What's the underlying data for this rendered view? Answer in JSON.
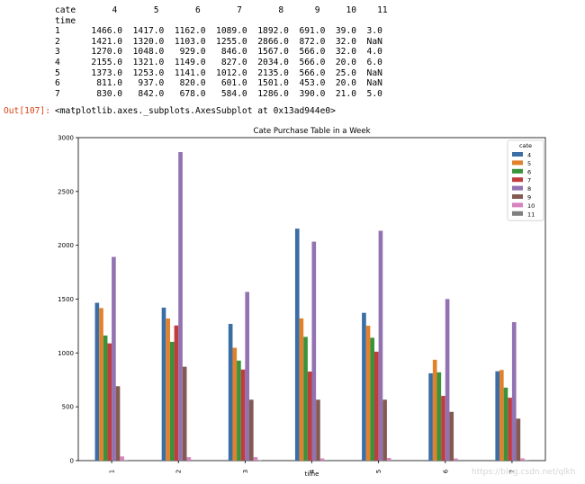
{
  "stdout": {
    "table_text": "cate       4       5       6       7       8      9     10    11\ntime\n1      1466.0  1417.0  1162.0  1089.0  1892.0  691.0  39.0  3.0\n2      1421.0  1320.0  1103.0  1255.0  2866.0  872.0  32.0  NaN\n3      1270.0  1048.0   929.0   846.0  1567.0  566.0  32.0  4.0\n4      2155.0  1321.0  1149.0   827.0  2034.0  566.0  20.0  6.0\n5      1373.0  1253.0  1141.0  1012.0  2135.0  566.0  25.0  NaN\n6       811.0   937.0   820.0   601.0  1501.0  453.0  20.0  NaN\n7       830.0   842.0   678.0   584.0  1286.0  390.0  21.0  5.0"
  },
  "output": {
    "prompt": "Out[107]:",
    "text": "<matplotlib.axes._subplots.AxesSubplot at 0x13ad944e0>"
  },
  "watermark": "https://blog.csdn.net/qlkh",
  "chart_data": {
    "type": "bar",
    "title": "Cate Purchase Table in a Week",
    "xlabel": "time",
    "ylabel": "",
    "ylim": [
      0,
      3000
    ],
    "yticks": [
      0,
      500,
      1000,
      1500,
      2000,
      2500,
      3000
    ],
    "categories": [
      "1",
      "2",
      "3",
      "4",
      "5",
      "6",
      "7"
    ],
    "legend_title": "cate",
    "legend_position": "top-right",
    "grid": false,
    "series": [
      {
        "name": "4",
        "color": "#3b6ea5",
        "values": [
          1466,
          1421,
          1270,
          2155,
          1373,
          811,
          830
        ]
      },
      {
        "name": "5",
        "color": "#e1812c",
        "values": [
          1417,
          1320,
          1048,
          1321,
          1253,
          937,
          842
        ]
      },
      {
        "name": "6",
        "color": "#3a923a",
        "values": [
          1162,
          1103,
          929,
          1149,
          1141,
          820,
          678
        ]
      },
      {
        "name": "7",
        "color": "#c03d3e",
        "values": [
          1089,
          1255,
          846,
          827,
          1012,
          601,
          584
        ]
      },
      {
        "name": "8",
        "color": "#9372b2",
        "values": [
          1892,
          2866,
          1567,
          2034,
          2135,
          1501,
          1286
        ]
      },
      {
        "name": "9",
        "color": "#845b53",
        "values": [
          691,
          872,
          566,
          566,
          566,
          453,
          390
        ]
      },
      {
        "name": "10",
        "color": "#d684bd",
        "values": [
          39,
          32,
          32,
          20,
          25,
          20,
          21
        ]
      },
      {
        "name": "11",
        "color": "#7f7f7f",
        "values": [
          3,
          null,
          4,
          6,
          null,
          null,
          5
        ]
      }
    ]
  }
}
